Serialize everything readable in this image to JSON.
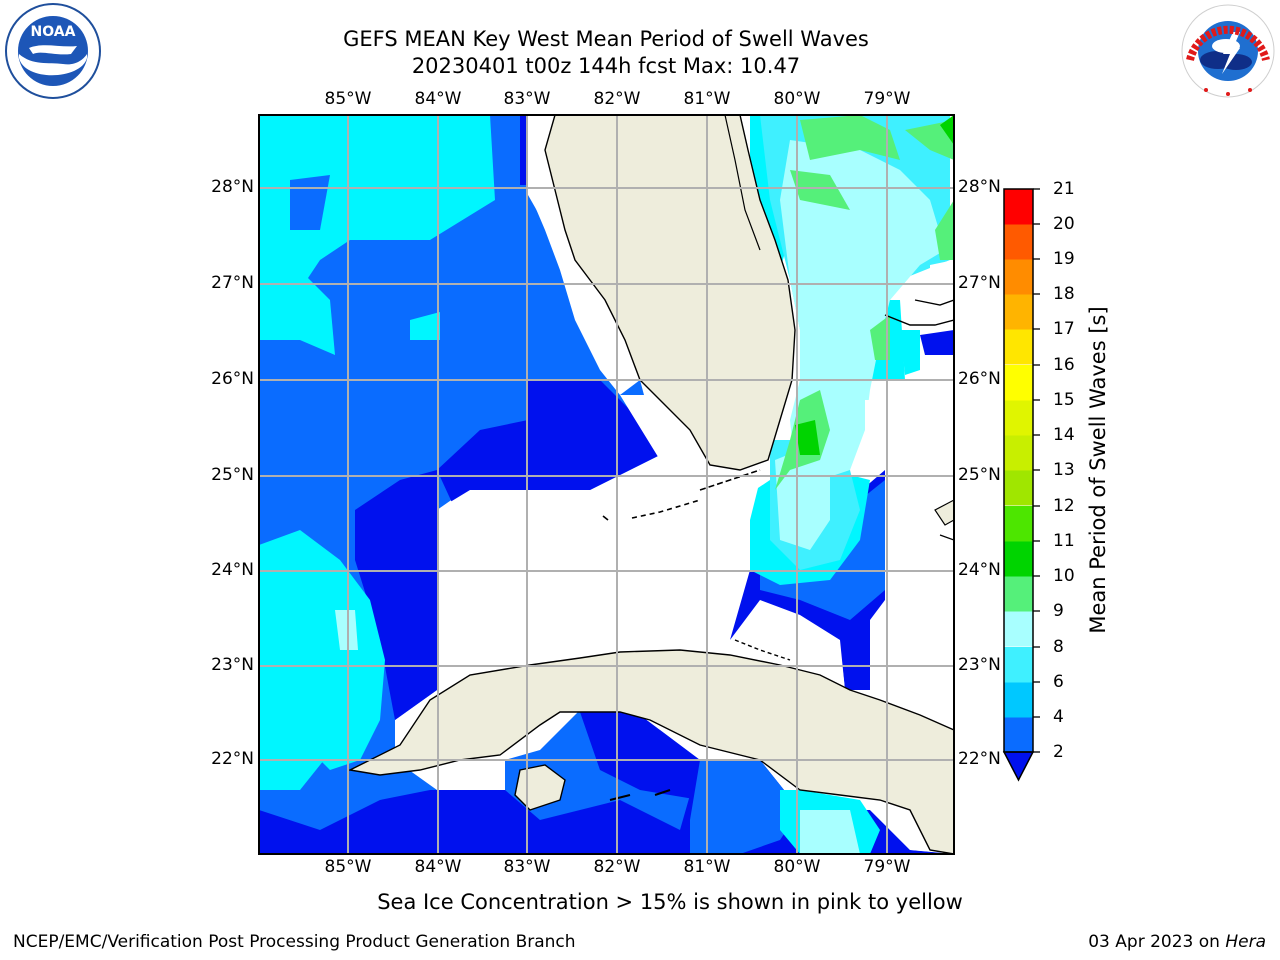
{
  "header": {
    "title_line1": "GEFS MEAN Key West Mean Period of Swell Waves",
    "title_line2": "20230401 t00z 144h fcst   Max: 10.47"
  },
  "logos": {
    "left": "NOAA",
    "left_ring_text": "NATIONAL OCEANIC AND ATMOSPHERIC ADMINISTRATION · U.S. DEPARTMENT OF COMMERCE",
    "right_ring_text": "NATIONAL WEATHER SERVICE"
  },
  "map": {
    "longitude_ticks": [
      "85°W",
      "84°W",
      "83°W",
      "82°W",
      "81°W",
      "80°W",
      "79°W"
    ],
    "latitude_ticks": [
      "28°N",
      "27°N",
      "26°N",
      "25°N",
      "24°N",
      "23°N",
      "22°N"
    ],
    "extent": {
      "lon_min": -86.0,
      "lon_max": -78.3,
      "lat_min": 21.0,
      "lat_max": 28.75
    },
    "land_color": "#eeeddc",
    "grid_color": "#b0b0b0"
  },
  "colorbar": {
    "label": "Mean Period of Swell Waves [s]",
    "ticks": [
      "2",
      "4",
      "6",
      "8",
      "9",
      "10",
      "11",
      "12",
      "13",
      "14",
      "15",
      "16",
      "17",
      "18",
      "19",
      "20",
      "21"
    ],
    "colors": [
      "#0a6cff",
      "#00c8ff",
      "#3ff0ff",
      "#a8ffff",
      "#55f07a",
      "#00d400",
      "#4de600",
      "#a0e600",
      "#c8ef00",
      "#e0f500",
      "#ffff00",
      "#ffe600",
      "#ffb400",
      "#ff8c00",
      "#ff5a00",
      "#ff2800",
      "#ff0000"
    ],
    "under_color": "#0011ee"
  },
  "footer": {
    "note": "Sea Ice Concentration > 15% is shown in pink to yellow",
    "left": "NCEP/EMC/Verification Post Processing Product Generation Branch",
    "right_date": "03 Apr 2023 on ",
    "right_machine": "Hera"
  }
}
